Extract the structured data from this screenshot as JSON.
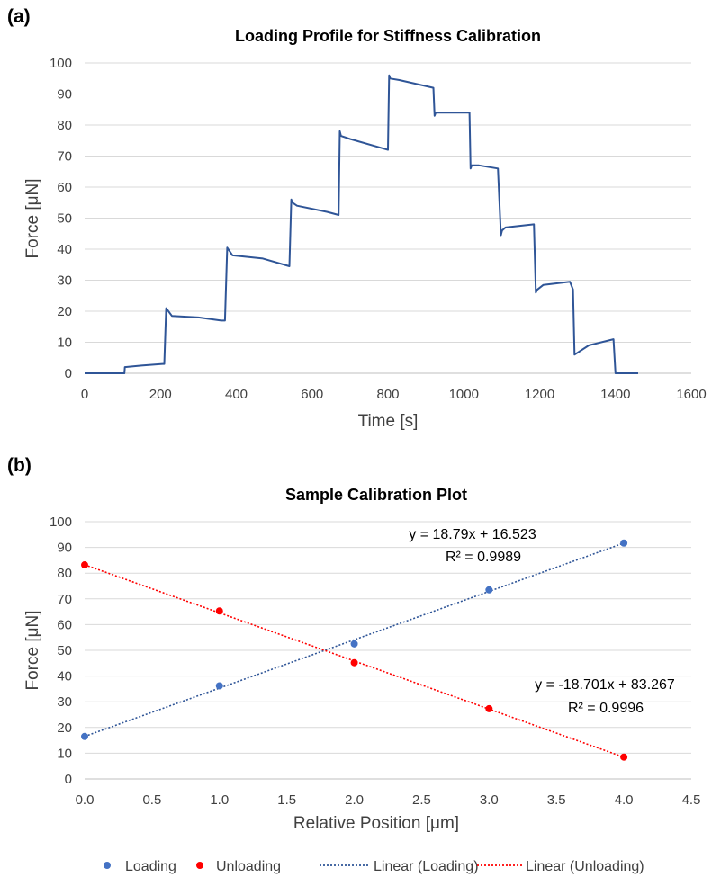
{
  "chart_data": [
    {
      "type": "line",
      "panel_label": "(a)",
      "title": "Loading Profile for Stiffness Calibration",
      "xlabel": "Time [s]",
      "ylabel": "Force [μN]",
      "xlim": [
        0,
        1600
      ],
      "ylim": [
        0,
        100
      ],
      "xticks": [
        "0",
        "200",
        "400",
        "600",
        "800",
        "1000",
        "1200",
        "1400",
        "1600"
      ],
      "yticks": [
        "0",
        "10",
        "20",
        "30",
        "40",
        "50",
        "60",
        "70",
        "80",
        "90",
        "100"
      ],
      "grid": "horizontal",
      "color": "#2f5597",
      "series": [
        {
          "name": "",
          "x": [
            0,
            105,
            106,
            150,
            205,
            210,
            215,
            230,
            300,
            360,
            368,
            370,
            376,
            390,
            470,
            540,
            545,
            548,
            560,
            640,
            670,
            673,
            676,
            700,
            800,
            803,
            806,
            830,
            920,
            923,
            926,
            960,
            1015,
            1018,
            1021,
            1040,
            1090,
            1098,
            1101,
            1110,
            1185,
            1190,
            1194,
            1210,
            1280,
            1288,
            1292,
            1330,
            1395,
            1400,
            1405,
            1460
          ],
          "y": [
            0,
            0,
            2,
            2.5,
            3,
            3,
            21,
            18.5,
            18,
            17,
            17,
            17,
            40.5,
            38,
            37,
            34.5,
            56,
            55,
            54,
            52,
            51,
            78,
            76.5,
            75.5,
            72,
            96,
            95,
            94.5,
            92,
            83,
            84,
            84,
            84,
            66,
            67,
            67,
            66,
            44.5,
            46,
            47,
            48,
            26,
            27,
            28.5,
            29.5,
            27,
            6,
            9,
            11,
            0,
            0,
            0
          ]
        }
      ]
    },
    {
      "type": "scatter",
      "panel_label": "(b)",
      "title": "Sample Calibration Plot",
      "xlabel": "Relative Position [μm]",
      "ylabel": "Force [μN]",
      "xlim": [
        0,
        4.5
      ],
      "ylim": [
        0,
        100
      ],
      "xticks": [
        "0.0",
        "0.5",
        "1.0",
        "1.5",
        "2.0",
        "2.5",
        "3.0",
        "3.5",
        "4.0",
        "4.5"
      ],
      "yticks": [
        "0",
        "10",
        "20",
        "30",
        "40",
        "50",
        "60",
        "70",
        "80",
        "90",
        "100"
      ],
      "grid": "horizontal",
      "legend_position": "bottom",
      "series": [
        {
          "name": "Loading",
          "color": "#4472c4",
          "x": [
            0,
            1,
            2,
            3,
            4
          ],
          "y": [
            16.5,
            36.2,
            52.5,
            73.5,
            91.7
          ]
        },
        {
          "name": "Unloading",
          "color": "#ff0000",
          "x": [
            0,
            1,
            2,
            3,
            4
          ],
          "y": [
            83.2,
            65.3,
            45.2,
            27.3,
            8.5
          ]
        }
      ],
      "trendlines": [
        {
          "name": "Linear (Loading)",
          "color": "#2f5597",
          "slope": 18.79,
          "intercept": 16.523,
          "equation": "y = 18.79x + 16.523",
          "r2": "R² = 0.9989"
        },
        {
          "name": "Linear (Unloading)",
          "color": "#ff0000",
          "slope": -18.701,
          "intercept": 83.267,
          "equation": "y = -18.701x + 83.267",
          "r2": "R² = 0.9996"
        }
      ]
    }
  ]
}
